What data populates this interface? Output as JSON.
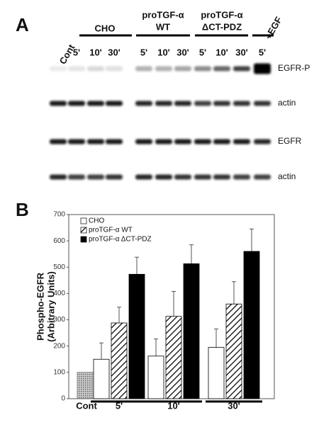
{
  "panel_a": {
    "label": "A",
    "groups": [
      {
        "name": "CHO"
      },
      {
        "name": "proTGF-α",
        "sub": "WT"
      },
      {
        "name": "proTGF-α",
        "sub": "ΔCT-PDZ"
      },
      {
        "name": "+EGF"
      }
    ],
    "control": "Cont",
    "lanes": [
      "5'",
      "10'",
      "30'",
      "5'",
      "10'",
      "30'",
      "5'",
      "10'",
      "30'",
      "5'"
    ],
    "blots": [
      "EGFR-P",
      "actin",
      "EGFR",
      "actin"
    ]
  },
  "chart_data": {
    "type": "bar",
    "label": "B",
    "y_label": [
      "Phospho-EGFR",
      "(Arbitrary Units)"
    ],
    "categories": [
      "Cont",
      "5'",
      "10'",
      "30'"
    ],
    "control_value": 100,
    "control_color": "#999999",
    "series": [
      {
        "name": "CHO",
        "color": "#ffffff",
        "hatch": false,
        "values": [
          null,
          150,
          162,
          195
        ],
        "errors": [
          null,
          62,
          65,
          70
        ]
      },
      {
        "name": "proTGF-α WT",
        "color": "#ffffff",
        "hatch": true,
        "values": [
          null,
          288,
          313,
          360
        ],
        "errors": [
          null,
          60,
          95,
          85
        ]
      },
      {
        "name": "proTGF-α ΔCT-PDZ",
        "color": "#000000",
        "hatch": false,
        "values": [
          null,
          473,
          513,
          560
        ],
        "errors": [
          null,
          65,
          72,
          85
        ]
      }
    ],
    "ylim": [
      0,
      700
    ],
    "yticks": [
      0,
      100,
      200,
      300,
      400,
      500,
      600,
      700
    ],
    "grid": false
  }
}
